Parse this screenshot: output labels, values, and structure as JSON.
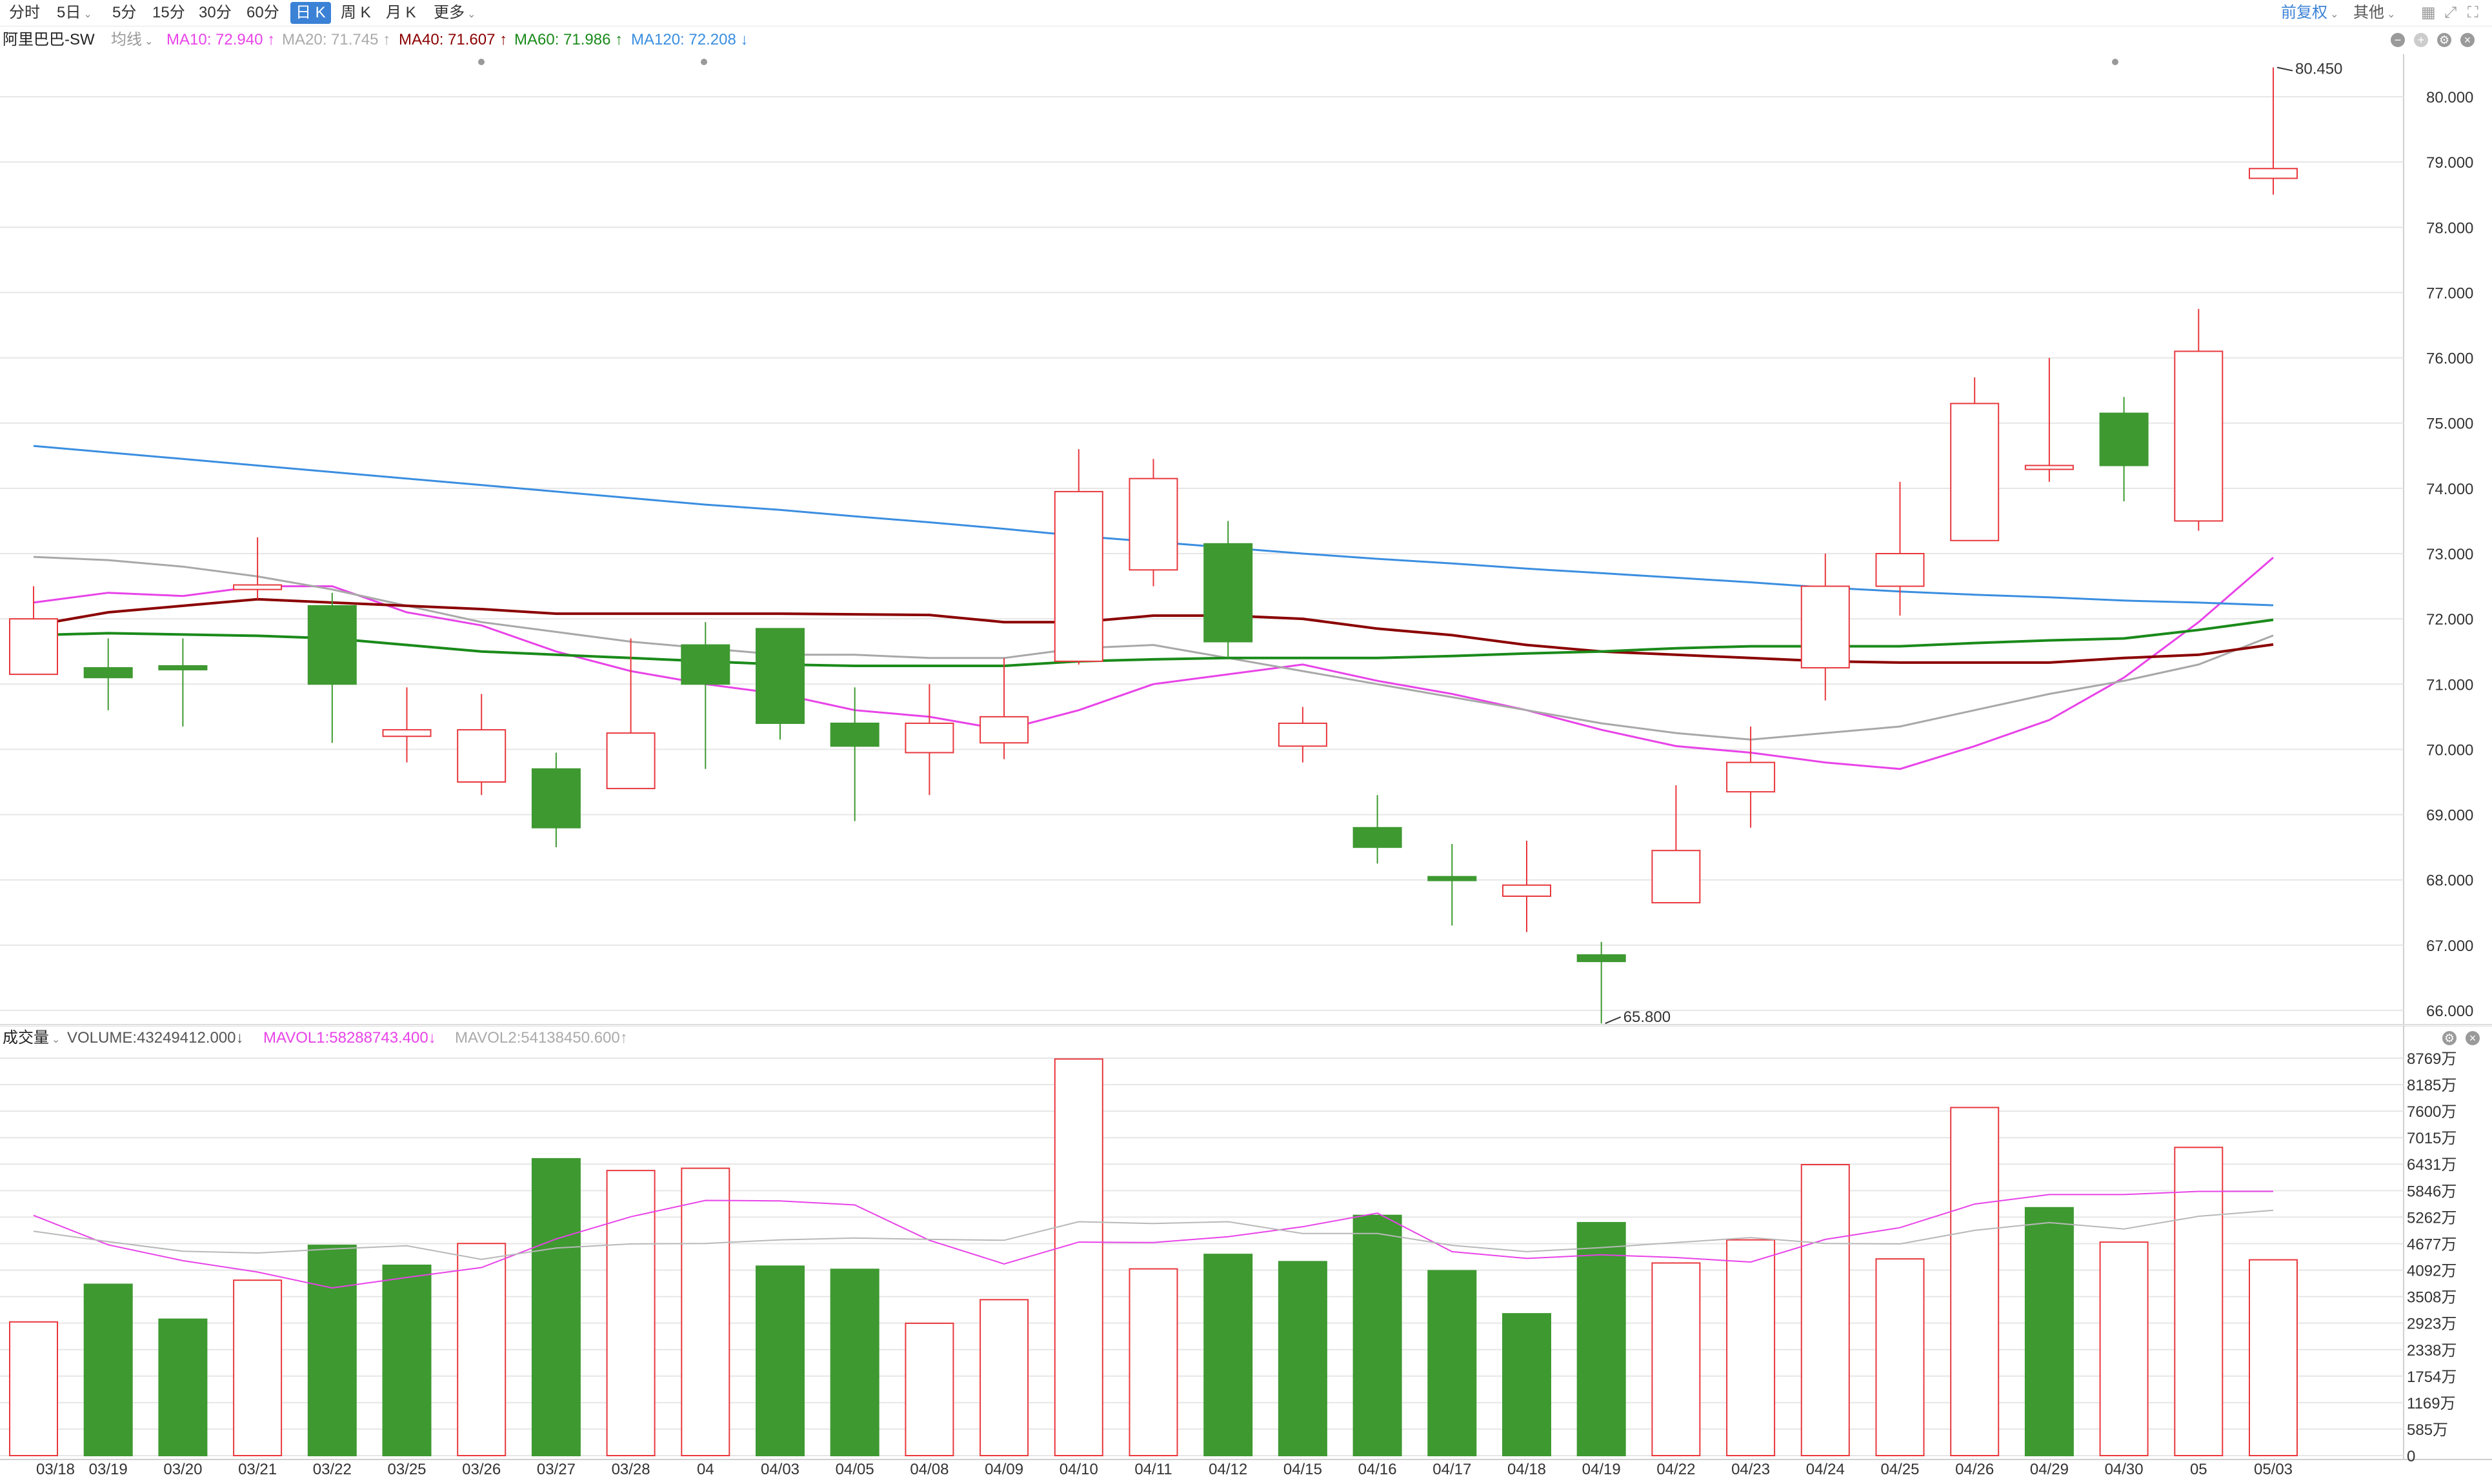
{
  "toolbar": {
    "tabs": [
      {
        "label": "分时",
        "dropdown": false
      },
      {
        "label": "5日",
        "dropdown": true
      },
      {
        "label": "5分",
        "dropdown": false
      },
      {
        "label": "15分",
        "dropdown": false
      },
      {
        "label": "30分",
        "dropdown": false
      },
      {
        "label": "60分",
        "dropdown": false
      },
      {
        "label": "日 K",
        "dropdown": false,
        "active": true
      },
      {
        "label": "周 K",
        "dropdown": false
      },
      {
        "label": "月 K",
        "dropdown": false
      },
      {
        "label": "更多",
        "dropdown": true
      }
    ],
    "adjust_label": "前复权",
    "other_label": "其他"
  },
  "price_legend": {
    "stock_name": "阿里巴巴-SW",
    "avg_label": "均线",
    "ma10": "MA10: 72.940 ↑",
    "ma20": "MA20: 71.745 ↑",
    "ma40": "MA40: 71.607 ↑",
    "ma60": "MA60: 71.986 ↑",
    "ma120": "MA120: 72.208 ↓"
  },
  "volume_legend": {
    "label": "成交量",
    "volume": "VOLUME:43249412.000↓",
    "mavol1": "MAVOL1:58288743.400↓",
    "mavol2": "MAVOL2:54138450.600↑"
  },
  "colors": {
    "up": "#e8383d",
    "down": "#3e9931",
    "ma10": "#e843e8",
    "ma20": "#a8a8a8",
    "ma40": "#8b0000",
    "ma60": "#1a8a1a",
    "ma120": "#3a8ee0",
    "mavol1": "#e843e8",
    "mavol2": "#b8b8b8",
    "grid": "#e6e6e6"
  },
  "chart_data": [
    {
      "type": "candlestick",
      "title": "阿里巴巴-SW",
      "ylim": [
        65.8,
        80.6
      ],
      "y_ticks": [
        "66.000",
        "67.000",
        "68.000",
        "69.000",
        "70.000",
        "71.000",
        "72.000",
        "73.000",
        "74.000",
        "75.000",
        "76.000",
        "77.000",
        "78.000",
        "79.000",
        "80.000"
      ],
      "max_annotation": "80.450",
      "min_annotation": "65.800",
      "candles": [
        {
          "open": 71.15,
          "close": 72.0,
          "high": 72.5,
          "low": 71.15
        },
        {
          "open": 71.25,
          "close": 71.1,
          "high": 71.7,
          "low": 70.6
        },
        {
          "open": 71.28,
          "close": 71.25,
          "high": 71.7,
          "low": 70.35
        },
        {
          "open": 72.45,
          "close": 72.52,
          "high": 73.25,
          "low": 72.3
        },
        {
          "open": 72.2,
          "close": 71.0,
          "high": 72.4,
          "low": 70.1
        },
        {
          "open": 70.2,
          "close": 70.3,
          "high": 70.95,
          "low": 69.8
        },
        {
          "open": 69.5,
          "close": 70.3,
          "high": 70.85,
          "low": 69.3
        },
        {
          "open": 69.7,
          "close": 68.8,
          "high": 69.95,
          "low": 68.5
        },
        {
          "open": 69.4,
          "close": 70.25,
          "high": 71.7,
          "low": 69.4
        },
        {
          "open": 71.6,
          "close": 71.0,
          "high": 71.95,
          "low": 69.7
        },
        {
          "open": 71.85,
          "close": 70.4,
          "high": 71.85,
          "low": 70.15
        },
        {
          "open": 70.4,
          "close": 70.05,
          "high": 70.95,
          "low": 68.9
        },
        {
          "open": 69.95,
          "close": 70.4,
          "high": 71.0,
          "low": 69.3
        },
        {
          "open": 70.1,
          "close": 70.5,
          "high": 71.4,
          "low": 69.85
        },
        {
          "open": 71.35,
          "close": 73.95,
          "high": 74.6,
          "low": 71.3
        },
        {
          "open": 72.75,
          "close": 74.15,
          "high": 74.45,
          "low": 72.5
        },
        {
          "open": 73.15,
          "close": 71.65,
          "high": 73.5,
          "low": 71.4
        },
        {
          "open": 70.05,
          "close": 70.4,
          "high": 70.65,
          "low": 69.8
        },
        {
          "open": 68.8,
          "close": 68.5,
          "high": 69.3,
          "low": 68.25
        },
        {
          "open": 68.05,
          "close": 68.0,
          "high": 68.55,
          "low": 67.3
        },
        {
          "open": 67.75,
          "close": 67.92,
          "high": 68.6,
          "low": 67.2
        },
        {
          "open": 66.85,
          "close": 66.75,
          "high": 67.05,
          "low": 65.8
        },
        {
          "open": 67.65,
          "close": 68.45,
          "high": 69.45,
          "low": 67.65
        },
        {
          "open": 69.35,
          "close": 69.8,
          "high": 70.35,
          "low": 68.8
        },
        {
          "open": 71.25,
          "close": 72.5,
          "high": 73.0,
          "low": 70.75
        },
        {
          "open": 72.5,
          "close": 73.0,
          "high": 74.1,
          "low": 72.05
        },
        {
          "open": 73.2,
          "close": 75.3,
          "high": 75.7,
          "low": 73.2
        },
        {
          "open": 74.3,
          "close": 74.35,
          "high": 76.0,
          "low": 74.1
        },
        {
          "open": 75.15,
          "close": 74.35,
          "high": 75.4,
          "low": 73.8
        },
        {
          "open": 73.5,
          "close": 76.1,
          "high": 76.75,
          "low": 73.35
        },
        {
          "open": 78.75,
          "close": 78.9,
          "high": 80.45,
          "low": 78.5
        }
      ],
      "ma_series": [
        {
          "name": "MA10",
          "values": [
            72.25,
            72.4,
            72.35,
            72.5,
            72.5,
            72.1,
            71.9,
            71.5,
            71.2,
            71.0,
            70.85,
            70.6,
            70.5,
            70.3,
            70.6,
            71.0,
            71.15,
            71.3,
            71.05,
            70.85,
            70.6,
            70.3,
            70.05,
            69.95,
            69.8,
            69.7,
            70.05,
            70.45,
            71.1,
            71.95,
            72.94
          ]
        },
        {
          "name": "MA20",
          "values": [
            72.95,
            72.9,
            72.8,
            72.65,
            72.45,
            72.2,
            71.95,
            71.8,
            71.65,
            71.55,
            71.45,
            71.45,
            71.4,
            71.4,
            71.55,
            71.6,
            71.4,
            71.2,
            71.0,
            70.8,
            70.6,
            70.4,
            70.25,
            70.15,
            70.25,
            70.35,
            70.6,
            70.85,
            71.05,
            71.3,
            71.745
          ]
        },
        {
          "name": "MA40",
          "values": [
            71.9,
            72.1,
            72.2,
            72.3,
            72.25,
            72.2,
            72.15,
            72.08,
            72.08,
            72.08,
            72.08,
            72.07,
            72.06,
            71.95,
            71.95,
            72.05,
            72.05,
            72.0,
            71.85,
            71.75,
            71.6,
            71.5,
            71.45,
            71.4,
            71.35,
            71.33,
            71.33,
            71.33,
            71.4,
            71.45,
            71.607
          ]
        },
        {
          "name": "MA60",
          "values": [
            71.75,
            71.78,
            71.76,
            71.74,
            71.7,
            71.6,
            71.5,
            71.45,
            71.4,
            71.35,
            71.3,
            71.28,
            71.28,
            71.28,
            71.35,
            71.38,
            71.4,
            71.4,
            71.4,
            71.43,
            71.47,
            71.5,
            71.55,
            71.58,
            71.58,
            71.58,
            71.63,
            71.67,
            71.7,
            71.83,
            71.986
          ]
        },
        {
          "name": "MA120",
          "values": [
            74.65,
            74.55,
            74.45,
            74.35,
            74.25,
            74.15,
            74.05,
            73.95,
            73.85,
            73.75,
            73.67,
            73.57,
            73.48,
            73.38,
            73.27,
            73.18,
            73.09,
            73.0,
            72.92,
            72.85,
            72.77,
            72.7,
            72.63,
            72.56,
            72.48,
            72.42,
            72.37,
            72.33,
            72.28,
            72.25,
            72.208
          ]
        }
      ]
    },
    {
      "type": "bar",
      "title": "成交量",
      "categories": [
        "03/18",
        "03/19",
        "03/20",
        "03/21",
        "03/22",
        "03/25",
        "03/26",
        "03/27",
        "03/28",
        "04",
        "04/03",
        "04/05",
        "04/08",
        "04/09",
        "04/10",
        "04/11",
        "04/12",
        "04/15",
        "04/16",
        "04/17",
        "04/18",
        "04/19",
        "04/22",
        "04/23",
        "04/24",
        "04/25",
        "04/26",
        "04/29",
        "04/30",
        "05",
        "05/03"
      ],
      "unit": "万",
      "ylim": [
        0,
        8769
      ],
      "y_ticks": [
        "8769万",
        "8185万",
        "7600万",
        "7015万",
        "6431万",
        "5846万",
        "5262万",
        "4677万",
        "4092万",
        "3508万",
        "2923万",
        "2338万",
        "1754万",
        "1169万",
        "585万",
        "0"
      ],
      "values": [
        2950,
        3780,
        3010,
        3870,
        4640,
        4200,
        4680,
        6550,
        6290,
        6340,
        4180,
        4110,
        2920,
        3440,
        8750,
        4120,
        4440,
        4280,
        5300,
        4080,
        3130,
        5140,
        4250,
        4760,
        6420,
        4340,
        7680,
        5470,
        4710,
        6800,
        4320
      ],
      "direction": [
        "up",
        "down",
        "down",
        "up",
        "down",
        "down",
        "up",
        "down",
        "up",
        "up",
        "down",
        "down",
        "up",
        "up",
        "up",
        "up",
        "down",
        "down",
        "down",
        "down",
        "down",
        "down",
        "up",
        "up",
        "up",
        "up",
        "up",
        "down",
        "up",
        "up",
        "up"
      ],
      "mavol1": [
        5300,
        4650,
        4300,
        4050,
        3700,
        3930,
        4150,
        4780,
        5270,
        5630,
        5620,
        5530,
        4750,
        4230,
        4710,
        4700,
        4830,
        5050,
        5350,
        4500,
        4350,
        4430,
        4370,
        4270,
        4770,
        5030,
        5550,
        5760,
        5760,
        5830,
        5829
      ],
      "mavol2": [
        4950,
        4720,
        4510,
        4470,
        4560,
        4630,
        4330,
        4580,
        4670,
        4680,
        4760,
        4800,
        4770,
        4750,
        5160,
        5120,
        5160,
        4900,
        4900,
        4640,
        4500,
        4590,
        4700,
        4810,
        4680,
        4670,
        4970,
        5140,
        5000,
        5280,
        5414
      ]
    }
  ]
}
